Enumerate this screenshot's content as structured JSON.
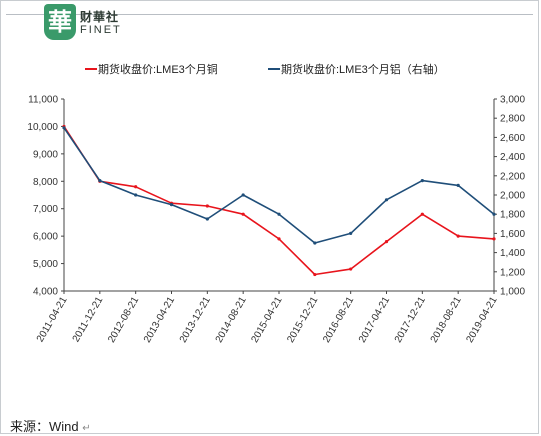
{
  "brand": {
    "logo_char": "華",
    "name_cn": "财華社",
    "name_en": "FINET"
  },
  "source": {
    "text": "来源：Wind",
    "mark": "↵"
  },
  "colors": {
    "copper": "#e8141c",
    "spread": "#1f4e79",
    "logo": "#3a9a6a"
  },
  "chart_data": {
    "type": "line",
    "title": "",
    "x": [
      "2011-04-21",
      "2011-12-21",
      "2012-08-21",
      "2013-04-21",
      "2013-12-21",
      "2014-08-21",
      "2015-04-21",
      "2015-12-21",
      "2016-08-21",
      "2017-04-21",
      "2017-12-21",
      "2018-08-21",
      "2019-04-21"
    ],
    "x_tick_labels": [
      "2011-04-21",
      "2011-12-21",
      "2012-08-21",
      "2013-04-21",
      "2013-12-21",
      "2014-08-21",
      "2015-04-21",
      "2015-12-21",
      "2016-08-21",
      "2017-04-21",
      "2017-12-21",
      "2018-08-21",
      "2019-04-21"
    ],
    "y_left_ticks": [
      "4,000",
      "5,000",
      "6,000",
      "7,000",
      "8,000",
      "9,000",
      "10,000",
      "11,000"
    ],
    "y_right_ticks": [
      "1,000",
      "1,200",
      "1,400",
      "1,600",
      "1,800",
      "2,000",
      "2,200",
      "2,400",
      "2,600",
      "2,800",
      "3,000"
    ],
    "ylim_left": [
      4000,
      11000
    ],
    "ylim_right": [
      1000,
      3000
    ],
    "grid": false,
    "legend_position": "top",
    "series": [
      {
        "name": "期货收盘价:LME3个月铜",
        "axis": "left",
        "color": "#e8141c",
        "values": [
          10000,
          8000,
          7800,
          7200,
          7100,
          6800,
          5900,
          4600,
          4800,
          5800,
          6800,
          6000,
          5900
        ]
      },
      {
        "name": "期货收盘价:LME3个月铝（右轴）",
        "axis": "right",
        "color": "#1f4e79",
        "values": [
          2700,
          2150,
          2000,
          1900,
          1750,
          2000,
          1800,
          1500,
          1600,
          1950,
          2150,
          2100,
          1800
        ]
      }
    ]
  }
}
